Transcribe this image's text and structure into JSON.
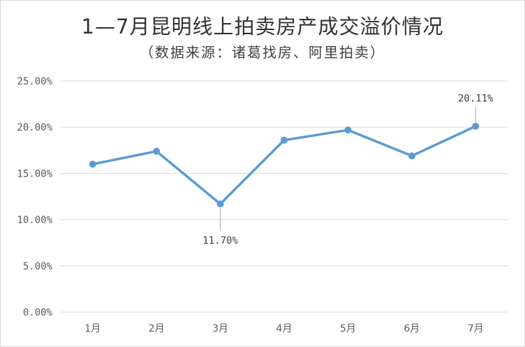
{
  "chart_data": {
    "type": "line",
    "title": "1—7月昆明线上拍卖房产成交溢价情况",
    "subtitle": "（数据来源：诸葛找房、阿里拍卖）",
    "categories": [
      "1月",
      "2月",
      "3月",
      "4月",
      "5月",
      "6月",
      "7月"
    ],
    "series": [
      {
        "values": [
          16.0,
          17.4,
          11.7,
          18.6,
          19.7,
          16.9,
          20.11
        ]
      }
    ],
    "annotations": [
      {
        "index": 2,
        "text": "11.70%",
        "position": "below"
      },
      {
        "index": 6,
        "text": "20.11%",
        "position": "above"
      }
    ],
    "yticks": [
      "0.00%",
      "5.00%",
      "10.00%",
      "15.00%",
      "20.00%",
      "25.00%"
    ],
    "ylim": [
      0,
      25
    ],
    "grid": true,
    "line_color": "#5b9bd5",
    "grid_color": "#d9d9d9"
  }
}
